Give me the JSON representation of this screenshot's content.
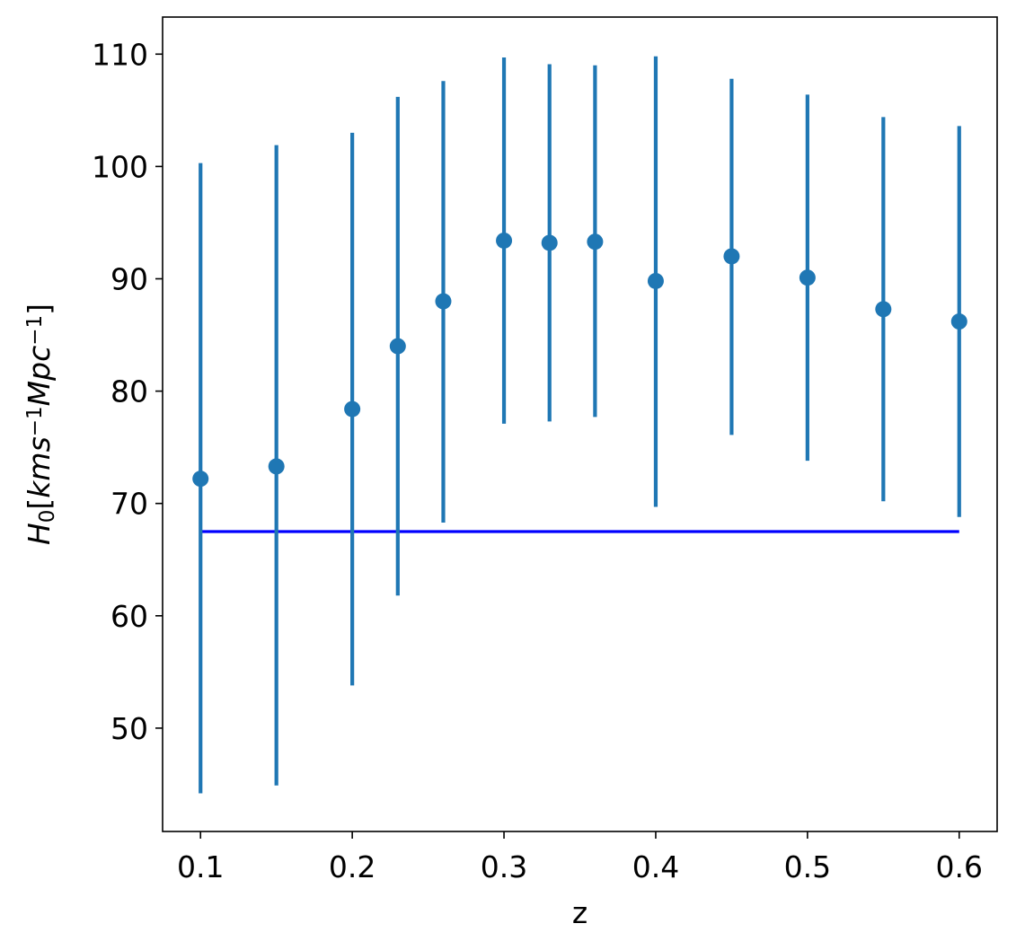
{
  "chart_data": {
    "type": "scatter",
    "title": "",
    "xlabel": "z",
    "ylabel": {
      "base": "H",
      "sub": "0",
      "open": "[",
      "u1": "kms",
      "sup1": "−1",
      "u2": "Mpc",
      "sup2": "−1",
      "close": "]"
    },
    "xlim": [
      0.075,
      0.625
    ],
    "ylim": [
      40.8,
      113.3
    ],
    "xticks": [
      0.1,
      0.2,
      0.3,
      0.4,
      0.5,
      0.6
    ],
    "xtick_labels": [
      "0.1",
      "0.2",
      "0.3",
      "0.4",
      "0.5",
      "0.6"
    ],
    "yticks": [
      50,
      60,
      70,
      80,
      90,
      100,
      110
    ],
    "ytick_labels": [
      "50",
      "60",
      "70",
      "80",
      "90",
      "100",
      "110"
    ],
    "grid": false,
    "legend": "none",
    "series": [
      {
        "kind": "errorbar",
        "color": "#1f77b4",
        "x": [
          0.1,
          0.15,
          0.2,
          0.23,
          0.26,
          0.3,
          0.33,
          0.36,
          0.4,
          0.45,
          0.5,
          0.55,
          0.6
        ],
        "y": [
          72.2,
          73.3,
          78.4,
          84.0,
          88.0,
          93.4,
          93.2,
          93.3,
          89.8,
          92.0,
          90.1,
          87.3,
          86.2
        ],
        "y_low": [
          44.2,
          44.9,
          53.8,
          61.8,
          68.3,
          77.1,
          77.3,
          77.7,
          69.7,
          76.1,
          73.8,
          70.2,
          68.8
        ],
        "y_high": [
          100.3,
          101.9,
          103.0,
          106.2,
          107.6,
          109.7,
          109.1,
          109.0,
          109.8,
          107.8,
          106.4,
          104.4,
          103.6
        ]
      },
      {
        "kind": "line",
        "color": "#0000ff",
        "x": [
          0.1,
          0.6
        ],
        "y": [
          67.5,
          67.5
        ]
      }
    ]
  }
}
